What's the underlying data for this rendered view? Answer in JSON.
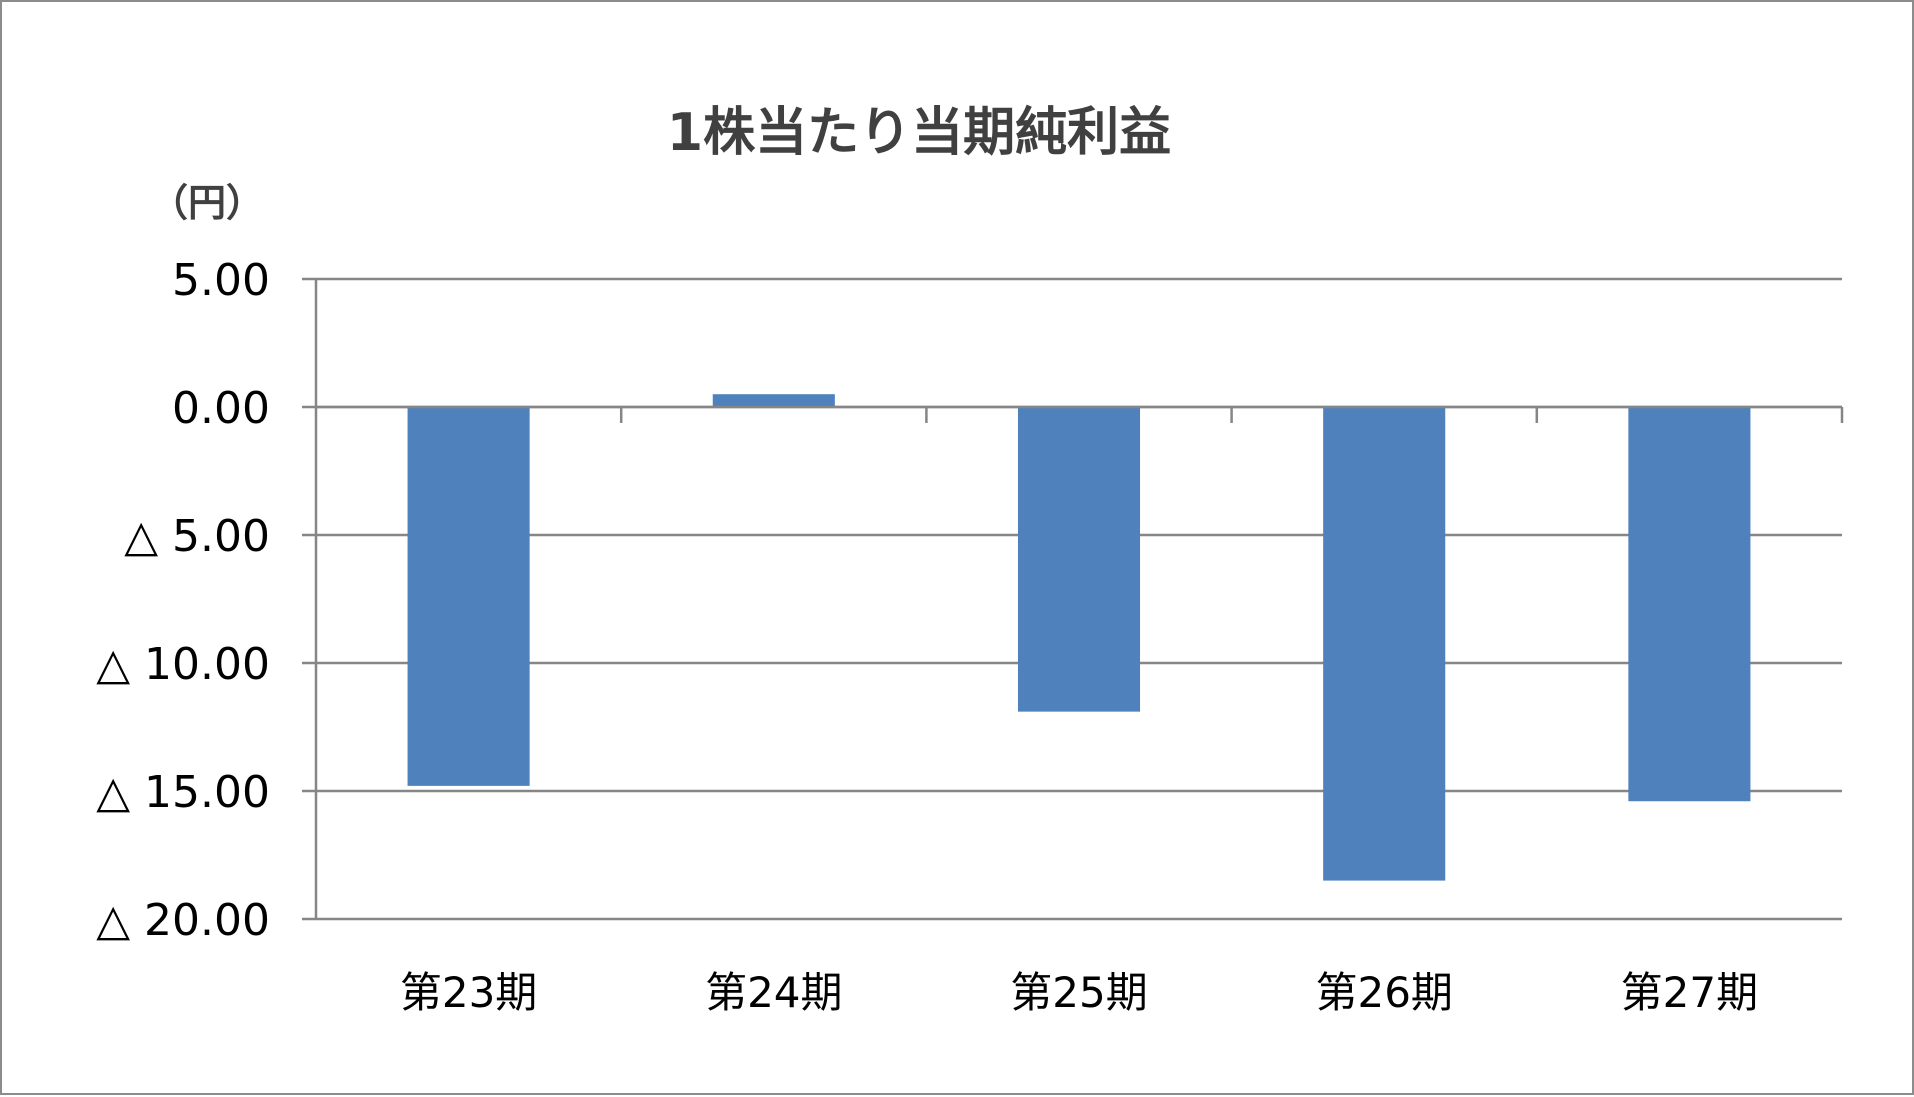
{
  "chart_data": {
    "type": "bar",
    "title": "1株当たり当期純利益",
    "unit_label": "（円）",
    "categories": [
      "第23期",
      "第24期",
      "第25期",
      "第26期",
      "第27期"
    ],
    "series": [
      {
        "values": [
          -14.8,
          0.5,
          -11.9,
          -18.5,
          -15.4
        ]
      }
    ],
    "ylim": [
      -20,
      5
    ],
    "yticks": [
      5,
      0,
      -5,
      -10,
      -15,
      -20
    ],
    "ytick_labels": [
      "5.00",
      "0.00",
      "△ 5.00",
      "△ 10.00",
      "△ 15.00",
      "△ 20.00"
    ],
    "grid": true,
    "legend": "none",
    "colors": {
      "bar": "#4f81bd",
      "grid": "#868686",
      "frame": "#8c8c8c",
      "title": "#404040"
    }
  }
}
